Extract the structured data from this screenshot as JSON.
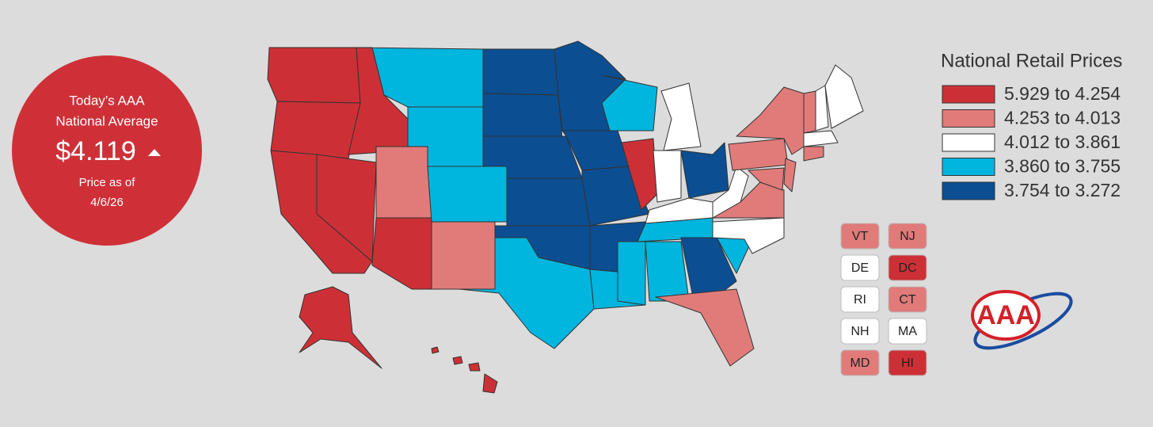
{
  "badge": {
    "line1": "Today’s AAA",
    "line2": "National Average",
    "price": "$4.119",
    "caption1": "Price as of",
    "caption2": "4/6/26"
  },
  "legend": {
    "title": "National Retail Prices",
    "items": [
      {
        "label": "5.929 to 4.254",
        "color": "#cc3036"
      },
      {
        "label": "4.253 to 4.013",
        "color": "#e07b79"
      },
      {
        "label": "4.012 to 3.861",
        "color": "#ffffff"
      },
      {
        "label": "3.860 to 3.755",
        "color": "#00b5de"
      },
      {
        "label": "3.754 to 3.272",
        "color": "#0b4e92"
      }
    ]
  },
  "small_states": [
    {
      "label": "VT",
      "color": "#e07b79"
    },
    {
      "label": "NJ",
      "color": "#e07b79"
    },
    {
      "label": "DE",
      "color": "#ffffff"
    },
    {
      "label": "DC",
      "color": "#cc3036"
    },
    {
      "label": "RI",
      "color": "#ffffff"
    },
    {
      "label": "CT",
      "color": "#e07b79"
    },
    {
      "label": "NH",
      "color": "#ffffff"
    },
    {
      "label": "MA",
      "color": "#ffffff"
    },
    {
      "label": "MD",
      "color": "#e07b79"
    },
    {
      "label": "HI",
      "color": "#cc3036"
    }
  ],
  "logo": "AAA"
}
